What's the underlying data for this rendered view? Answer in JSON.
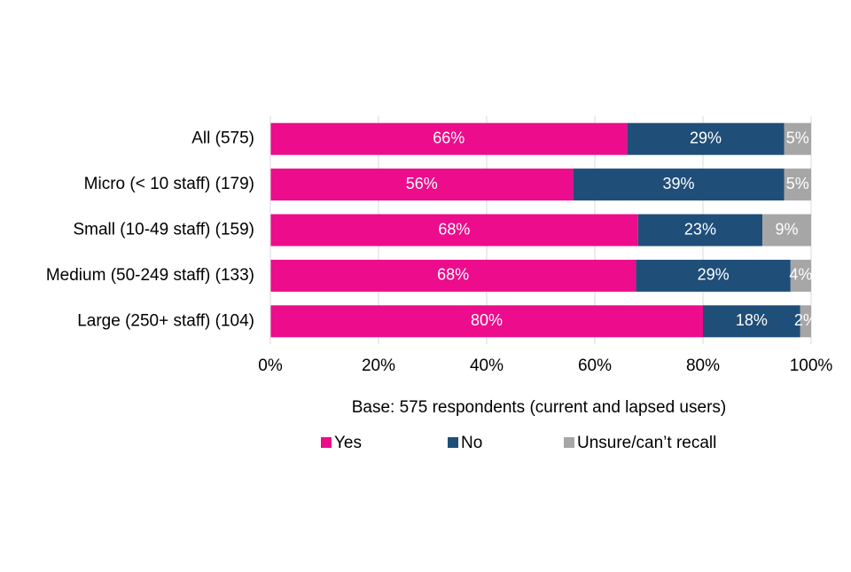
{
  "chart_data": {
    "type": "stacked-barh",
    "categories": [
      "All (575)",
      "Micro (< 10 staff) (179)",
      "Small (10-49 staff) (159)",
      "Medium (50-249 staff) (133)",
      "Large (250+ staff) (104)"
    ],
    "series": [
      {
        "name": "Yes",
        "color": "#ec0c8c",
        "values": [
          66,
          56,
          68,
          67.6,
          80
        ],
        "value_labels": [
          "66%",
          "56%",
          "68%",
          "68%",
          "80%"
        ]
      },
      {
        "name": "No",
        "color": "#1f4e79",
        "values": [
          29,
          39,
          23,
          28.6,
          18
        ],
        "value_labels": [
          "29%",
          "39%",
          "23%",
          "29%",
          "18%"
        ]
      },
      {
        "name": "Unsure/can’t recall",
        "color": "#a6a6a6",
        "values": [
          5,
          5,
          9,
          3.8,
          2
        ],
        "value_labels": [
          "5%",
          "5%",
          "9%",
          "4%",
          "2%"
        ]
      }
    ],
    "xlim": [
      0,
      100
    ],
    "xticks": [
      {
        "value": 0,
        "label": "0%"
      },
      {
        "value": 20,
        "label": "20%"
      },
      {
        "value": 40,
        "label": "40%"
      },
      {
        "value": 60,
        "label": "60%"
      },
      {
        "value": 80,
        "label": "80%"
      },
      {
        "value": 100,
        "label": "100%"
      }
    ],
    "grid": true,
    "note": "Base: 575 respondents (current and lapsed users)",
    "legend": "bottom"
  }
}
